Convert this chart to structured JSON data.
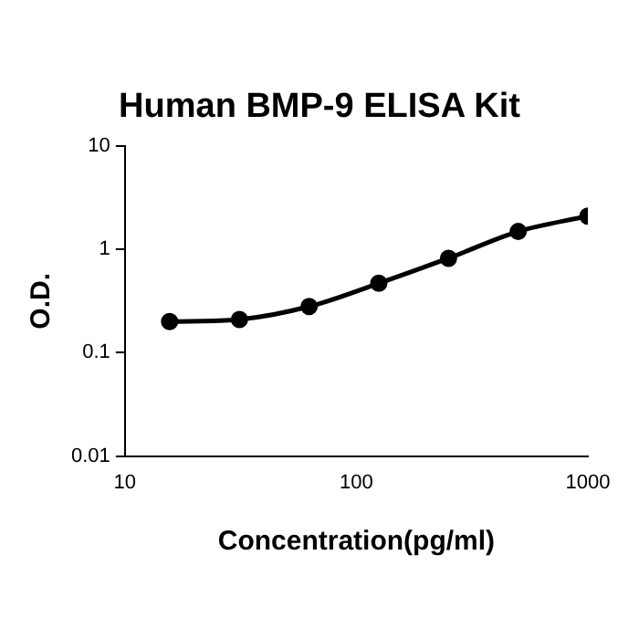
{
  "chart_data": {
    "type": "line",
    "title": "Human BMP-9 ELISA Kit",
    "xlabel": "Concentration(pg/ml)",
    "ylabel": "O.D.",
    "x": [
      15.6,
      31.25,
      62.5,
      125,
      250,
      500,
      1000
    ],
    "series": [
      {
        "color": "#000000",
        "values": [
          0.2,
          0.21,
          0.28,
          0.47,
          0.82,
          1.49,
          2.1
        ]
      }
    ],
    "log": "xy",
    "xlim": [
      10,
      1000
    ],
    "xticks": [
      10,
      100,
      1000
    ],
    "ylim": [
      0.01,
      10
    ],
    "yticks": [
      0.01,
      0.1,
      1,
      10
    ],
    "grid": false,
    "legend": false,
    "marker": "circle",
    "line_style": "solid"
  }
}
